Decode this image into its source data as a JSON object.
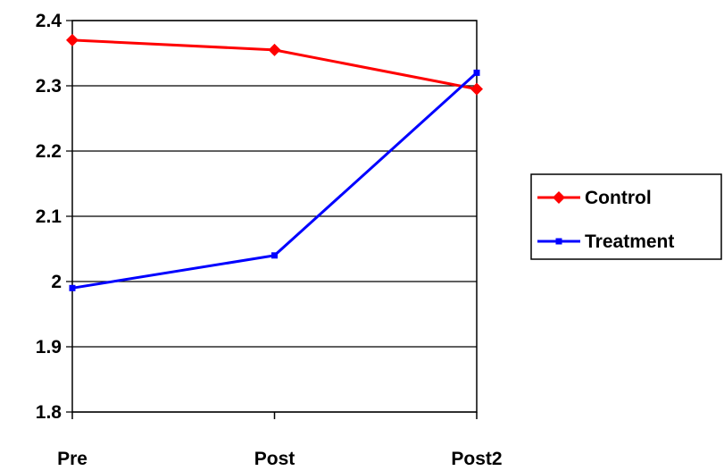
{
  "chart_data": {
    "type": "line",
    "categories": [
      "Pre",
      "Post",
      "Post2"
    ],
    "series": [
      {
        "name": "Control",
        "values": [
          2.37,
          2.355,
          2.295
        ],
        "color": "#ff0000",
        "marker": "diamond"
      },
      {
        "name": "Treatment",
        "values": [
          1.99,
          2.04,
          2.32
        ],
        "color": "#0000ff",
        "marker": "square"
      }
    ],
    "yticks": [
      "1.8",
      "1.9",
      "2",
      "2.1",
      "2.2",
      "2.3",
      "2.4"
    ],
    "ylim": [
      1.8,
      2.4
    ],
    "grid": true,
    "legend": "right",
    "title": "",
    "xlabel": "",
    "ylabel": ""
  }
}
